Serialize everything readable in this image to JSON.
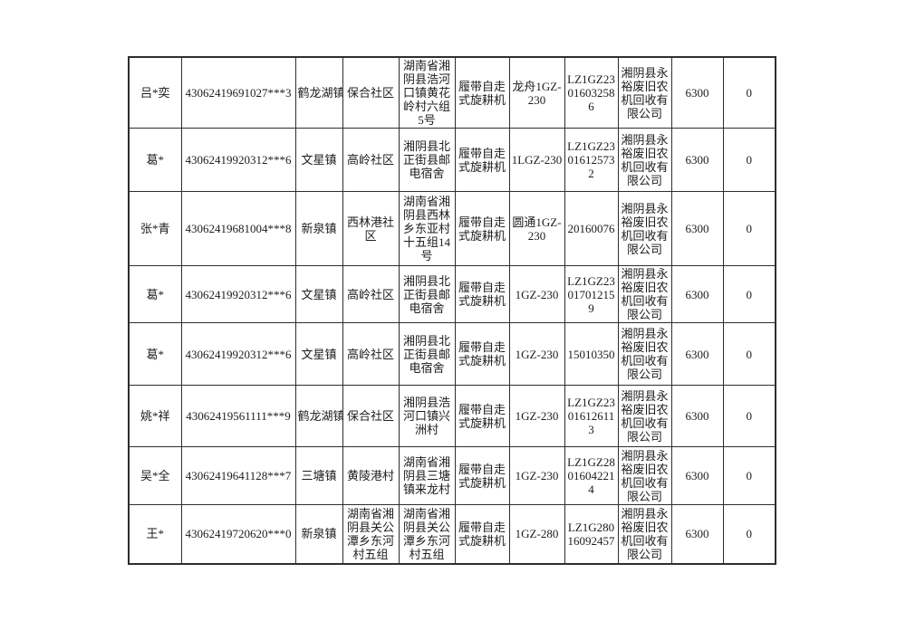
{
  "page": {
    "background": "#ffffff",
    "text_color": "#1c1c1c",
    "border_color": "#2e2e2e"
  },
  "table": {
    "column_count": 11,
    "rows": [
      [
        "吕*奕",
        "43062419691027***3",
        "鹤龙湖镇",
        "保合社区",
        "湖南省湘阴县浩河口镇黄花岭村六组5号",
        "履带自走式旋耕机",
        "龙舟1GZ-230",
        "LZ1GZ23016032586",
        "湘阴县永裕废旧农机回收有限公司",
        "6300",
        "0"
      ],
      [
        "葛*",
        "43062419920312***6",
        "文星镇",
        "高岭社区",
        "湘阴县北正街县邮电宿舍",
        "履带自走式旋耕机",
        "1LGZ-230",
        "LZ1GZ23016125732",
        "湘阴县永裕废旧农机回收有限公司",
        "6300",
        "0"
      ],
      [
        "张*青",
        "43062419681004***8",
        "新泉镇",
        "西林港社区",
        "湖南省湘阴县西林乡东亚村十五组14号",
        "履带自走式旋耕机",
        "圆通1GZ-230",
        "20160076",
        "湘阴县永裕废旧农机回收有限公司",
        "6300",
        "0"
      ],
      [
        "葛*",
        "43062419920312***6",
        "文星镇",
        "高岭社区",
        "湘阴县北正街县邮电宿舍",
        "履带自走式旋耕机",
        "1GZ-230",
        "LZ1GZ23017012159",
        "湘阴县永裕废旧农机回收有限公司",
        "6300",
        "0"
      ],
      [
        "葛*",
        "43062419920312***6",
        "文星镇",
        "高岭社区",
        "湘阴县北正街县邮电宿舍",
        "履带自走式旋耕机",
        "1GZ-230",
        "15010350",
        "湘阴县永裕废旧农机回收有限公司",
        "6300",
        "0"
      ],
      [
        "姚*祥",
        "43062419561111***9",
        "鹤龙湖镇",
        "保合社区",
        "湘阴县浩河口镇兴洲村",
        "履带自走式旋耕机",
        "1GZ-230",
        "LZ1GZ23016126113",
        "湘阴县永裕废旧农机回收有限公司",
        "6300",
        "0"
      ],
      [
        "吴*全",
        "43062419641128***7",
        "三塘镇",
        "黄陵港村",
        "湖南省湘阴县三塘镇来龙村",
        "履带自走式旋耕机",
        "1GZ-230",
        "LZ1GZ28016042214",
        "湘阴县永裕废旧农机回收有限公司",
        "6300",
        "0"
      ],
      [
        "王*",
        "43062419720620***0",
        "新泉镇",
        "湖南省湘阴县关公潭乡东河村五组",
        "湖南省湘阴县关公潭乡东河村五组",
        "履带自走式旋耕机",
        "1GZ-280",
        "LZ1G28016092457",
        "湘阴县永裕废旧农机回收有限公司",
        "6300",
        "0"
      ]
    ]
  }
}
